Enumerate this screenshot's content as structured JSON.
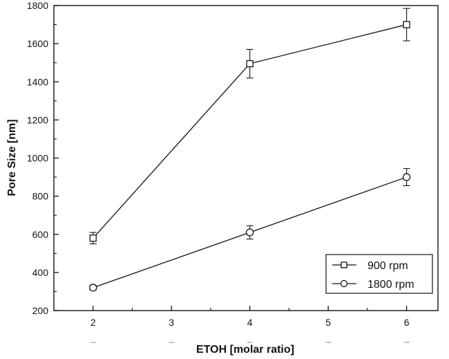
{
  "chart_data": {
    "type": "line",
    "xlabel": "ETOH [molar ratio]",
    "ylabel": "Pore Size [nm]",
    "xlim": [
      1.5,
      6.4
    ],
    "ylim": [
      200,
      1800
    ],
    "xticks": [
      2,
      3,
      4,
      5,
      6
    ],
    "yticks": [
      200,
      400,
      600,
      800,
      1000,
      1200,
      1400,
      1600,
      1800
    ],
    "grid": false,
    "legend_position": "bottom-right",
    "series": [
      {
        "name": "900 rpm",
        "marker": "square",
        "x": [
          2,
          4,
          6
        ],
        "y": [
          580,
          1495,
          1700
        ],
        "error": [
          30,
          75,
          85
        ]
      },
      {
        "name": "1800 rpm",
        "marker": "circle",
        "x": [
          2,
          4,
          6
        ],
        "y": [
          320,
          610,
          900
        ],
        "error": [
          12,
          35,
          45
        ]
      }
    ]
  }
}
